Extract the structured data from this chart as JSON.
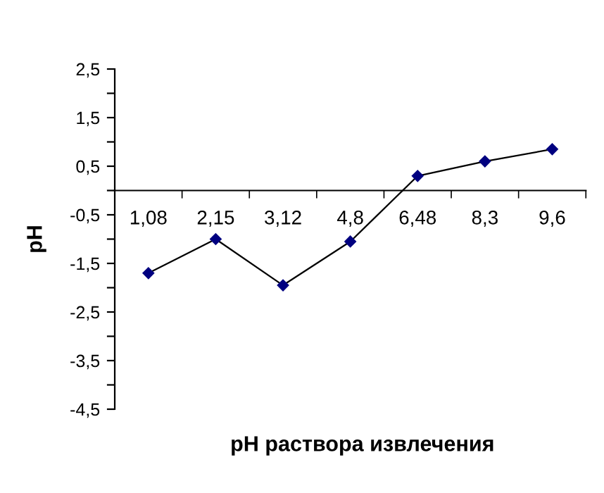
{
  "chart_data": {
    "type": "line",
    "xlabel": "pH раствора извлечения",
    "ylabel": "pH",
    "categories": [
      "1,08",
      "2,15",
      "3,12",
      "4,8",
      "6,48",
      "8,3",
      "9,6"
    ],
    "series": [
      {
        "color": "#000080",
        "values": [
          -1.7,
          -1.0,
          -1.95,
          -1.05,
          0.3,
          0.6,
          0.85
        ]
      }
    ],
    "ylim": [
      -4.5,
      2.5
    ],
    "yticks": [
      {
        "value": 2.5,
        "label": "2,5"
      },
      {
        "value": 2,
        "label": null
      },
      {
        "value": 1.5,
        "label": "1,5"
      },
      {
        "value": 1,
        "label": null
      },
      {
        "value": 0.5,
        "label": "0,5"
      },
      {
        "value": 0,
        "label": null
      },
      {
        "value": -0.5,
        "label": "-0,5"
      },
      {
        "value": -1,
        "label": null
      },
      {
        "value": -1.5,
        "label": "-1,5"
      },
      {
        "value": -2,
        "label": null
      },
      {
        "value": -2.5,
        "label": "-2,5"
      },
      {
        "value": -3,
        "label": null
      },
      {
        "value": -3.5,
        "label": "-3,5"
      },
      {
        "value": -4,
        "label": null
      },
      {
        "value": -4.5,
        "label": "-4,5"
      }
    ],
    "grid": false,
    "legend": false,
    "marker": "diamond",
    "line_style": "solid"
  }
}
